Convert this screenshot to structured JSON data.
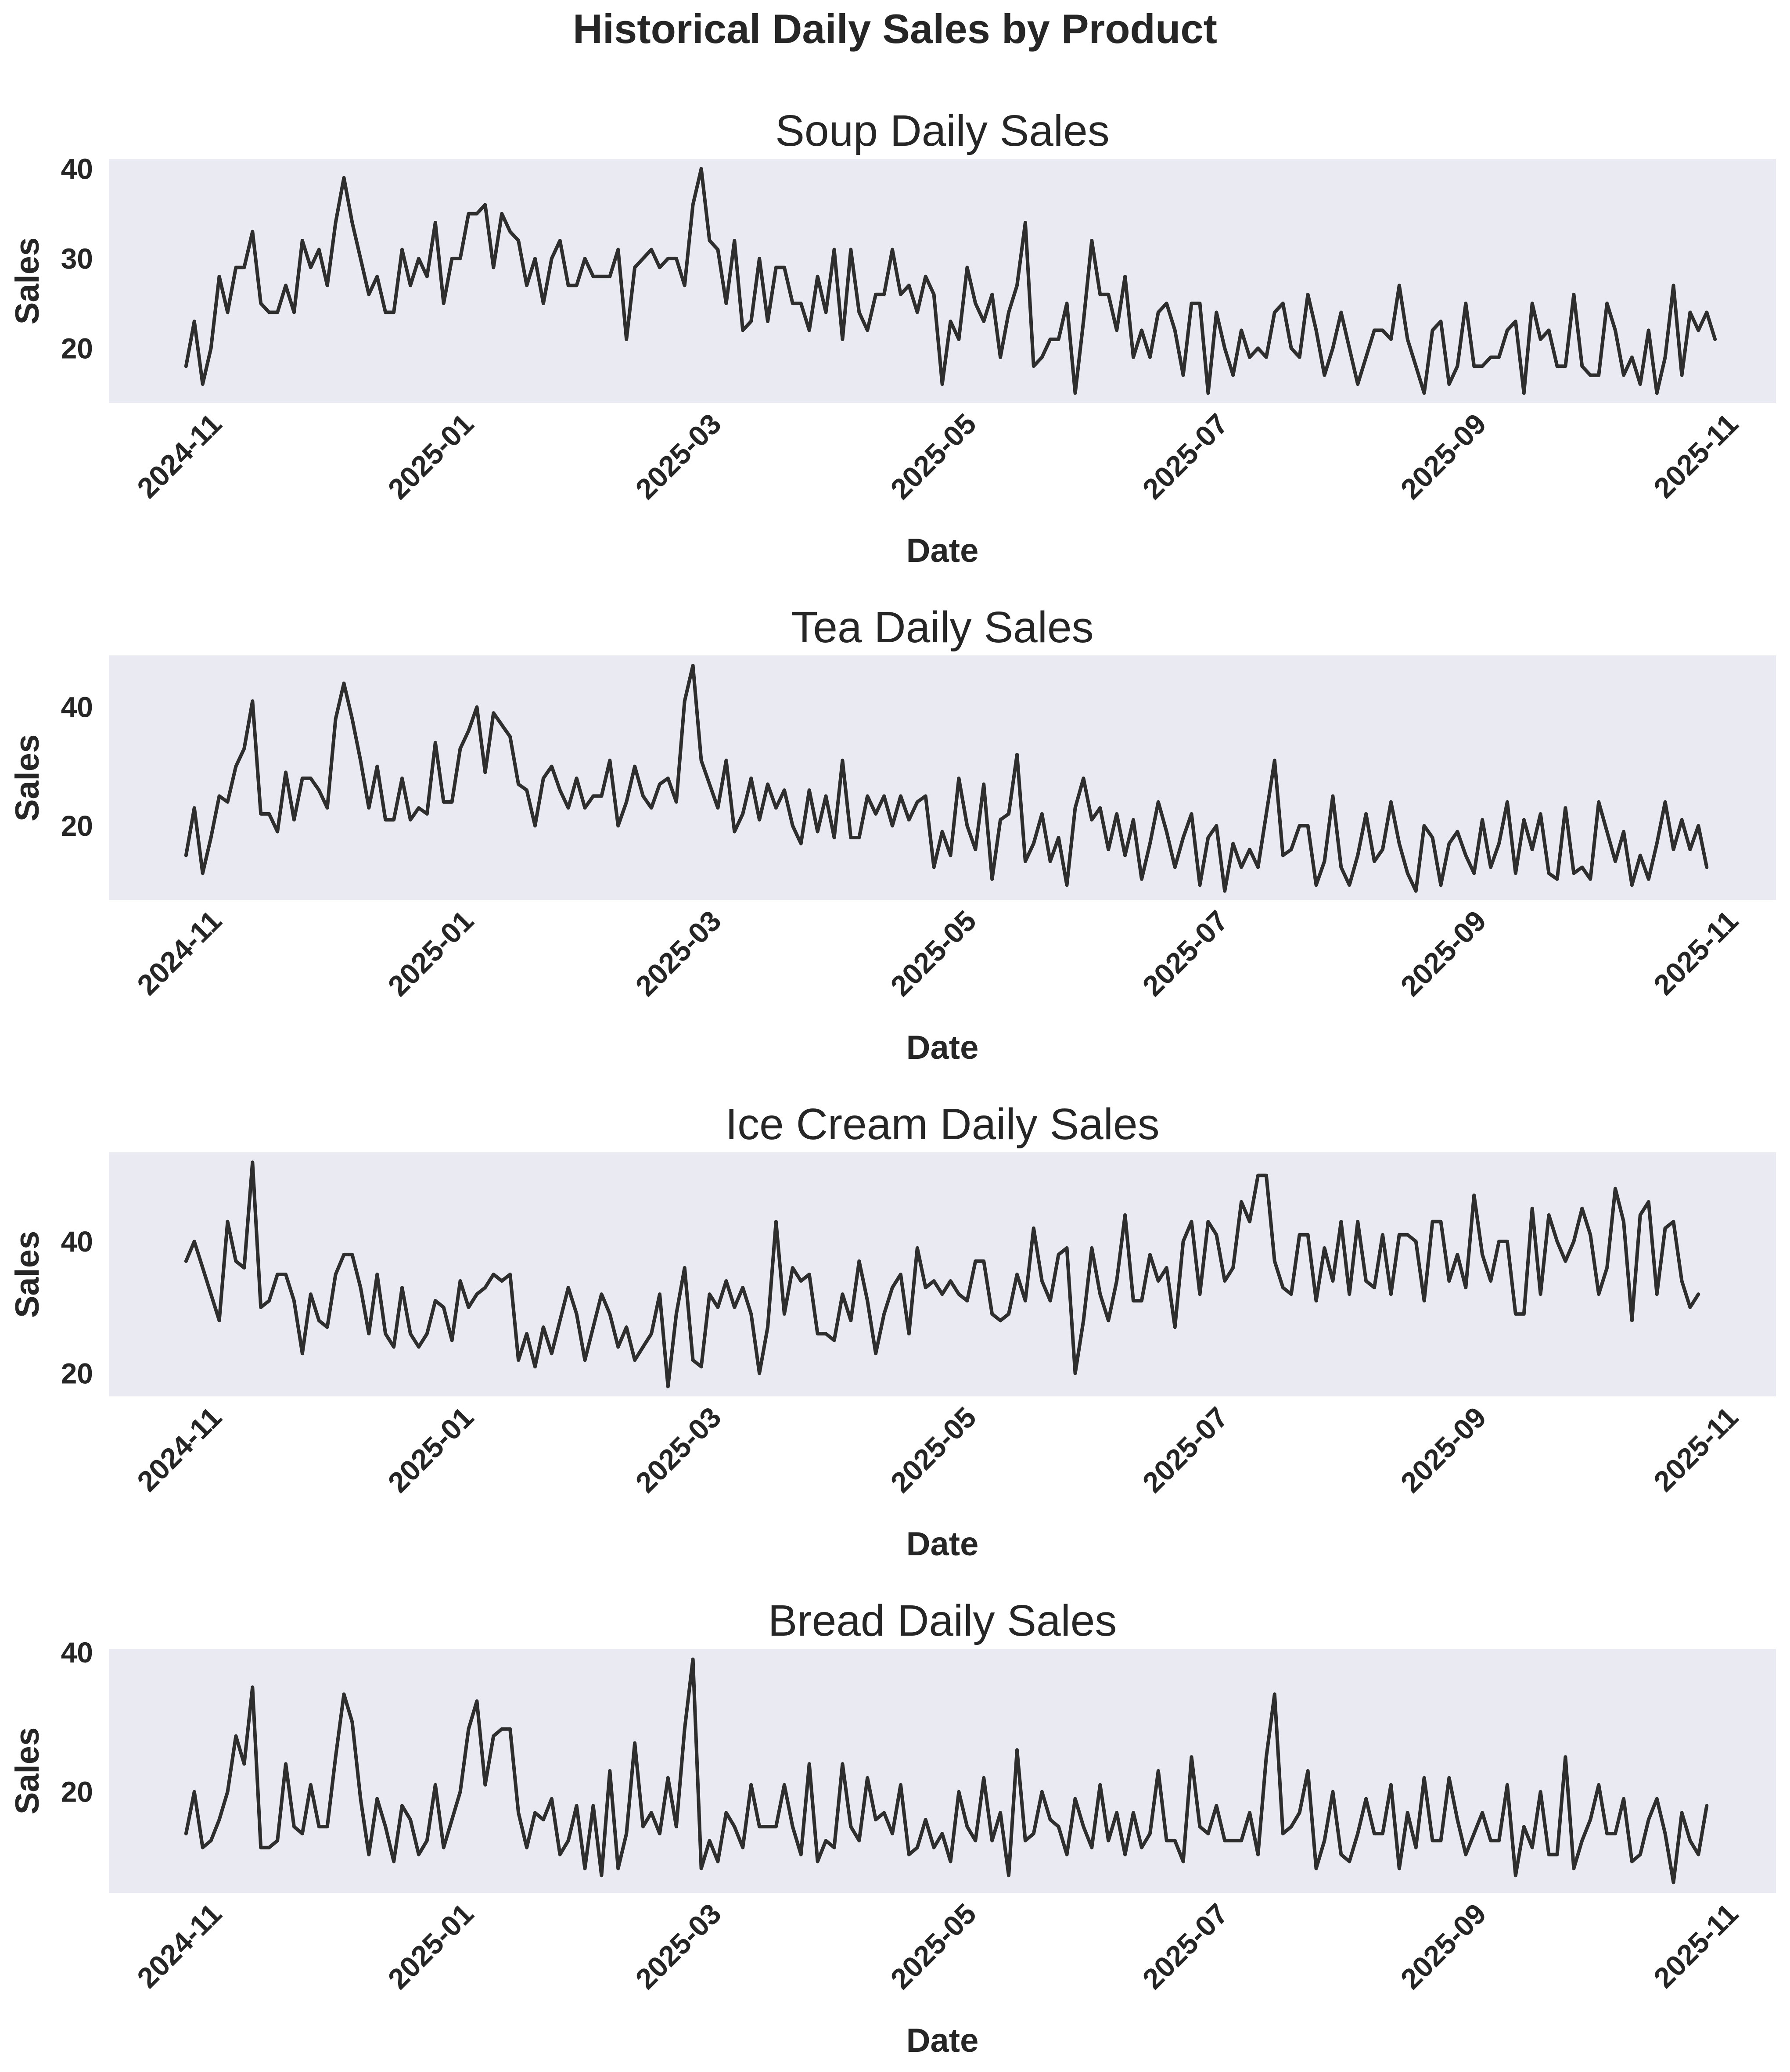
{
  "figure": {
    "title": "Historical Daily Sales by Product"
  },
  "chart_data": [
    {
      "type": "line",
      "title": "Soup Daily Sales",
      "xlabel": "Date",
      "ylabel": "Sales",
      "ylim": [
        13.9,
        41.1
      ],
      "yticks": [
        20,
        30,
        40
      ],
      "xticks": [
        "2024-11",
        "2025-01",
        "2025-03",
        "2025-05",
        "2025-07",
        "2025-09",
        "2025-11"
      ],
      "x_start": "2024-10-23",
      "x_step_days": 2,
      "grid": false,
      "legend": null,
      "series": [
        {
          "name": "Soup",
          "color": "#2e2e2e",
          "values": [
            18,
            23,
            16,
            20,
            28,
            24,
            29,
            29,
            33,
            25,
            24,
            24,
            27,
            24,
            32,
            29,
            31,
            27,
            34,
            39,
            34,
            30,
            26,
            28,
            24,
            24,
            31,
            27,
            30,
            28,
            34,
            25,
            30,
            30,
            35,
            35,
            36,
            29,
            35,
            33,
            32,
            27,
            30,
            25,
            30,
            32,
            27,
            27,
            30,
            28,
            28,
            28,
            31,
            21,
            29,
            30,
            31,
            29,
            30,
            30,
            27,
            36,
            40,
            32,
            31,
            25,
            32,
            22,
            23,
            30,
            23,
            29,
            29,
            25,
            25,
            22,
            28,
            24,
            31,
            21,
            31,
            24,
            22,
            26,
            26,
            31,
            26,
            27,
            24,
            28,
            26,
            16,
            23,
            21,
            29,
            25,
            23,
            26,
            19,
            24,
            27,
            34,
            18,
            19,
            21,
            21,
            25,
            15,
            23,
            32,
            26,
            26,
            22,
            28,
            19,
            22,
            19,
            24,
            25,
            22,
            17,
            25,
            25,
            15,
            24,
            20,
            17,
            22,
            19,
            20,
            19,
            24,
            25,
            20,
            19,
            26,
            22,
            17,
            20,
            24,
            20,
            16,
            19,
            22,
            22,
            21,
            27,
            21,
            18,
            15,
            22,
            23,
            16,
            18,
            25,
            18,
            18,
            19,
            19,
            22,
            23,
            15,
            25,
            21,
            22,
            18,
            18,
            26,
            18,
            17,
            17,
            25,
            22,
            17,
            19,
            16,
            22,
            15,
            19,
            27,
            17,
            24,
            22,
            24,
            21
          ]
        }
      ]
    },
    {
      "type": "line",
      "title": "Tea Daily Sales",
      "xlabel": "Date",
      "ylabel": "Sales",
      "ylim": [
        7.5,
        48.7
      ],
      "yticks": [
        20,
        40
      ],
      "xticks": [
        "2024-11",
        "2025-01",
        "2025-03",
        "2025-05",
        "2025-07",
        "2025-09",
        "2025-11"
      ],
      "x_start": "2024-10-23",
      "x_step_days": 2,
      "grid": false,
      "legend": null,
      "series": [
        {
          "name": "Tea",
          "color": "#2e2e2e",
          "values": [
            15,
            23,
            12,
            18,
            25,
            24,
            30,
            33,
            41,
            22,
            22,
            19,
            29,
            21,
            28,
            28,
            26,
            23,
            38,
            44,
            38,
            31,
            23,
            30,
            21,
            21,
            28,
            21,
            23,
            22,
            34,
            24,
            24,
            33,
            36,
            40,
            29,
            39,
            37,
            35,
            27,
            26,
            20,
            28,
            30,
            26,
            23,
            28,
            23,
            25,
            25,
            31,
            20,
            24,
            30,
            25,
            23,
            27,
            28,
            24,
            41,
            47,
            31,
            27,
            23,
            31,
            19,
            22,
            28,
            21,
            27,
            23,
            26,
            20,
            17,
            26,
            19,
            25,
            18,
            31,
            18,
            18,
            25,
            22,
            25,
            20,
            25,
            21,
            24,
            25,
            13,
            19,
            15,
            28,
            20,
            16,
            27,
            11,
            21,
            22,
            32,
            14,
            17,
            22,
            14,
            18,
            10,
            23,
            28,
            21,
            23,
            16,
            22,
            15,
            21,
            11,
            17,
            24,
            19,
            13,
            18,
            22,
            10,
            18,
            20,
            9,
            17,
            13,
            16,
            13,
            22,
            31,
            15,
            16,
            20,
            20,
            10,
            14,
            25,
            13,
            10,
            15,
            22,
            14,
            16,
            24,
            17,
            12,
            9,
            20,
            18,
            10,
            17,
            19,
            15,
            12,
            21,
            13,
            17,
            24,
            12,
            21,
            16,
            22,
            12,
            11,
            23,
            12,
            13,
            11,
            24,
            19,
            14,
            19,
            10,
            15,
            11,
            17,
            24,
            16,
            21,
            16,
            20,
            13
          ]
        }
      ]
    },
    {
      "type": "line",
      "title": "Ice Cream Daily Sales",
      "xlabel": "Date",
      "ylabel": "Sales",
      "ylim": [
        16.5,
        53.5
      ],
      "yticks": [
        20,
        40
      ],
      "xticks": [
        "2024-11",
        "2025-01",
        "2025-03",
        "2025-05",
        "2025-07",
        "2025-09",
        "2025-11"
      ],
      "x_start": "2024-10-23",
      "x_step_days": 2,
      "grid": false,
      "legend": null,
      "series": [
        {
          "name": "Ice Cream",
          "color": "#2e2e2e",
          "values": [
            37,
            40,
            36,
            32,
            28,
            43,
            37,
            36,
            52,
            30,
            31,
            35,
            35,
            31,
            23,
            32,
            28,
            27,
            35,
            38,
            38,
            33,
            26,
            35,
            26,
            24,
            33,
            26,
            24,
            26,
            31,
            30,
            25,
            34,
            30,
            32,
            33,
            35,
            34,
            35,
            22,
            26,
            21,
            27,
            23,
            28,
            33,
            29,
            22,
            27,
            32,
            29,
            24,
            27,
            22,
            24,
            26,
            32,
            18,
            29,
            36,
            22,
            21,
            32,
            30,
            34,
            30,
            33,
            29,
            20,
            27,
            43,
            29,
            36,
            34,
            35,
            26,
            26,
            25,
            32,
            28,
            37,
            31,
            23,
            29,
            33,
            35,
            26,
            39,
            33,
            34,
            32,
            34,
            32,
            31,
            37,
            37,
            29,
            28,
            29,
            35,
            31,
            42,
            34,
            31,
            38,
            39,
            20,
            28,
            39,
            32,
            28,
            34,
            44,
            31,
            31,
            38,
            34,
            36,
            27,
            40,
            43,
            32,
            43,
            41,
            34,
            36,
            46,
            43,
            50,
            50,
            37,
            33,
            32,
            41,
            41,
            31,
            39,
            34,
            43,
            32,
            43,
            34,
            33,
            41,
            32,
            41,
            41,
            40,
            31,
            43,
            43,
            34,
            38,
            33,
            47,
            38,
            34,
            40,
            40,
            29,
            29,
            45,
            32,
            44,
            40,
            37,
            40,
            45,
            41,
            32,
            36,
            48,
            43,
            28,
            44,
            46,
            32,
            42,
            43,
            34,
            30,
            32
          ]
        }
      ]
    },
    {
      "type": "line",
      "title": "Bread Daily Sales",
      "xlabel": "Date",
      "ylabel": "Sales",
      "ylim": [
        5.5,
        40.5
      ],
      "yticks": [
        20,
        40
      ],
      "xticks": [
        "2024-11",
        "2025-01",
        "2025-03",
        "2025-05",
        "2025-07",
        "2025-09",
        "2025-11"
      ],
      "x_start": "2024-10-23",
      "x_step_days": 2,
      "grid": false,
      "legend": null,
      "series": [
        {
          "name": "Bread",
          "color": "#2e2e2e",
          "values": [
            14,
            20,
            12,
            13,
            16,
            20,
            28,
            24,
            35,
            12,
            12,
            13,
            24,
            15,
            14,
            21,
            15,
            15,
            25,
            34,
            30,
            19,
            11,
            19,
            15,
            10,
            18,
            16,
            11,
            13,
            21,
            12,
            16,
            20,
            29,
            33,
            21,
            28,
            29,
            29,
            17,
            12,
            17,
            16,
            19,
            11,
            13,
            18,
            9,
            18,
            8,
            23,
            9,
            14,
            27,
            15,
            17,
            14,
            22,
            15,
            29,
            39,
            9,
            13,
            10,
            17,
            15,
            12,
            21,
            15,
            15,
            15,
            21,
            15,
            11,
            24,
            10,
            13,
            12,
            24,
            15,
            13,
            22,
            16,
            17,
            14,
            21,
            11,
            12,
            16,
            12,
            14,
            10,
            20,
            15,
            13,
            22,
            13,
            17,
            8,
            26,
            13,
            14,
            20,
            16,
            15,
            11,
            19,
            15,
            12,
            21,
            13,
            17,
            11,
            17,
            12,
            14,
            23,
            13,
            13,
            10,
            25,
            15,
            14,
            18,
            13,
            13,
            13,
            17,
            11,
            25,
            34,
            14,
            15,
            17,
            23,
            9,
            13,
            20,
            11,
            10,
            14,
            19,
            14,
            14,
            21,
            9,
            17,
            12,
            22,
            13,
            13,
            22,
            16,
            11,
            14,
            17,
            13,
            13,
            21,
            8,
            15,
            12,
            20,
            11,
            11,
            25,
            9,
            13,
            16,
            21,
            14,
            14,
            19,
            10,
            11,
            16,
            19,
            14,
            7,
            17,
            13,
            11,
            18
          ]
        }
      ]
    }
  ]
}
